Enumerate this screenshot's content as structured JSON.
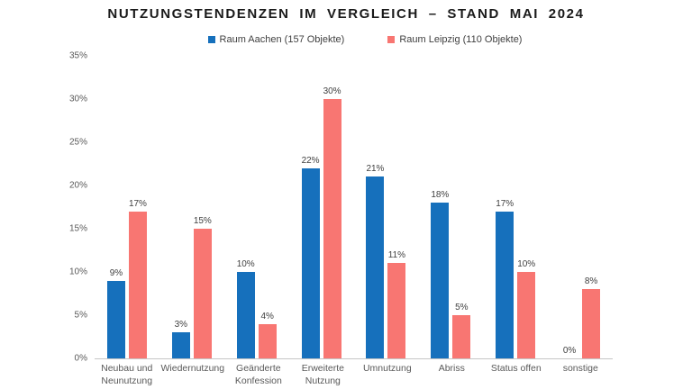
{
  "title": "NUTZUNGSTENDENZEN IM VERGLEICH – STAND MAI 2024",
  "chart_data": {
    "type": "bar",
    "title": "NUTZUNGSTENDENZEN IM VERGLEICH – STAND MAI 2024",
    "categories": [
      "Neubau und Neunutzung",
      "Wiedernutzung",
      "Geänderte Konfession",
      "Erweiterte Nutzung",
      "Umnutzung",
      "Abriss",
      "Status offen",
      "sonstige"
    ],
    "series": [
      {
        "name": "Raum Aachen (157 Objekte)",
        "color": "#1670bc",
        "values": [
          9,
          3,
          10,
          22,
          21,
          18,
          17,
          0
        ],
        "labels": [
          "9%",
          "3%",
          "10%",
          "22%",
          "21%",
          "18%",
          "17%",
          "0%"
        ]
      },
      {
        "name": "Raum Leipzig (110 Objekte)",
        "color": "#f87672",
        "values": [
          17,
          15,
          4,
          30,
          11,
          5,
          10,
          8
        ],
        "labels": [
          "17%",
          "15%",
          "4%",
          "30%",
          "11%",
          "5%",
          "10%",
          "8%"
        ]
      }
    ],
    "unit": "%",
    "ylim": [
      0,
      35
    ],
    "y_tick_step": 5,
    "y_tick_labels": [
      "0%",
      "5%",
      "10%",
      "15%",
      "20%",
      "25%",
      "30%",
      "35%"
    ],
    "grid": false,
    "legend_position": "top-center",
    "data_labels": true,
    "axis_line_color": "#c6c6c6"
  }
}
